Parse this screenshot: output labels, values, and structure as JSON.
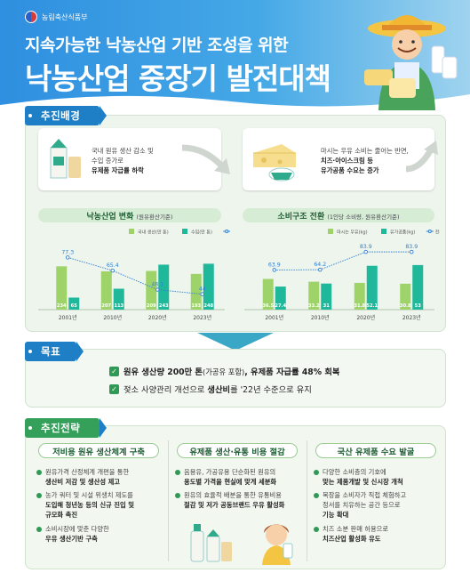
{
  "header": {
    "ministry": "농림축산식품부",
    "title_line1": "지속가능한 낙농산업 기반 조성을 위한",
    "title_line2": "낙농산업 중장기 발전대책"
  },
  "sections": {
    "background": "추진배경",
    "goal": "목표",
    "strategy": "추진전략"
  },
  "background_cards": {
    "left": {
      "line1": "국내 원유 생산 감소 및",
      "line2": "수입 증가로",
      "line3": "유제품 자급률 하락"
    },
    "right": {
      "line1": "마시는 우유 소비는 줄어는 반면,",
      "line2": "치즈·아이스크림 등",
      "line3": "유가공품 수요는 증가"
    }
  },
  "chart_titles": {
    "left": "낙농산업 변화",
    "left_note": "(원유환산기준)",
    "right": "소비구조 전환",
    "right_note": "(1인당 소비량, 원유환산기준)"
  },
  "chart_data": [
    {
      "type": "bar",
      "categories": [
        "2001년",
        "2010년",
        "2020년",
        "2023년"
      ],
      "series": [
        {
          "name": "국내 생산(만 톤)",
          "values": [
            234,
            207,
            209,
            193
          ],
          "color": "#9ed36a"
        },
        {
          "name": "수입(만 톤)",
          "values": [
            65,
            113,
            243,
            248
          ],
          "color": "#1fb89a"
        },
        {
          "name": "자급률(%)",
          "type": "line",
          "values": [
            77.3,
            65.4,
            48.1,
            44.0
          ],
          "color": "#2f7fd1"
        }
      ]
    },
    {
      "type": "bar",
      "categories": [
        "2001년",
        "2010년",
        "2020년",
        "2023년"
      ],
      "series": [
        {
          "name": "마시는 우유(kg)",
          "values": [
            36.5,
            33.2,
            31.8,
            30.8
          ],
          "color": "#9ed36a"
        },
        {
          "name": "유가공품(kg)",
          "values": [
            27.4,
            31,
            52.1,
            53
          ],
          "color": "#1fb89a"
        },
        {
          "name": "전체 유제품(kg)",
          "type": "line",
          "values": [
            63.9,
            64.2,
            83.9,
            83.9
          ],
          "color": "#2f7fd1"
        }
      ]
    }
  ],
  "goal": {
    "line1_pre": "원유 생산량 200만 톤",
    "line1_mid": "(가공유 포함)",
    "line1_post": ", 유제품 자급률 48% 회복",
    "line2_pre": "젖소 사양관리 개선으로 ",
    "line2_bold": "생산비",
    "line2_post": "를 '22년 수준으로 유지"
  },
  "strategy": [
    {
      "head": "저비용 원유 생산체계 구축",
      "items": [
        {
          "a": "원유가격 산정체계 개편을 통한",
          "b": "생산비 저감 및 생산성 제고"
        },
        {
          "a": "농가 쿼터 및 시설 위생치 제도를",
          "b": "도입해 청년농 등의 신규 진입 및",
          "c": "규모화 촉진"
        },
        {
          "a": "소비시장에 맞춘 다양한",
          "b": "우유 생산기반 구축"
        }
      ]
    },
    {
      "head": "유제품 생산·유통 비용 절감",
      "items": [
        {
          "a": "음용유, 가공유용 단순화된 원유의",
          "b": "용도별 가격을 현실에 맞게 세분화"
        },
        {
          "a": "원유의 효율적 배분을 통한 유통비용",
          "b": "절감 및 저가 공동브랜드 우유 활성화"
        }
      ]
    },
    {
      "head": "국산 유제품 수요 발굴",
      "items": [
        {
          "a": "다양한 소비층의 기호에",
          "b": "맞는 제품개발 및 신시장 개척"
        },
        {
          "a": "목장을 소비자가 직접 체험하고",
          "b": "정서를 치유하는 공간 등으로",
          "c": "기능 확대"
        },
        {
          "a": "치즈 소분 판매 허용으로",
          "b": "치즈산업 활성화 유도"
        }
      ]
    }
  ]
}
